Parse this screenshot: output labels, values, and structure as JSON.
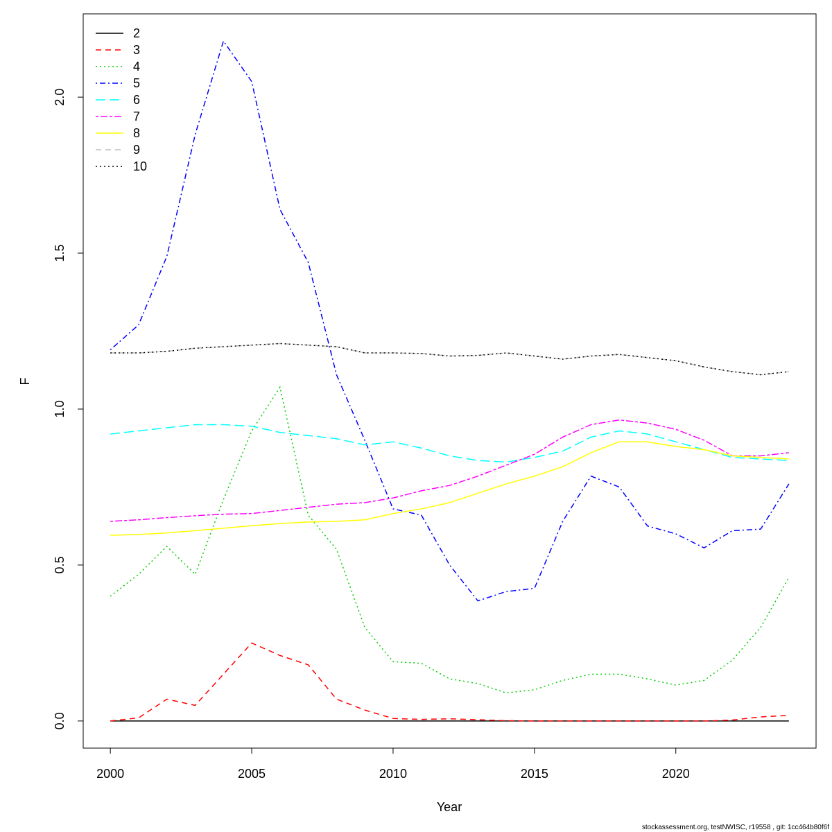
{
  "chart_data": {
    "type": "line",
    "xlabel": "Year",
    "ylabel": "F",
    "footer": "stockassessment.org, testNWISC, r19558 , git: 1cc464b80f6f",
    "x": [
      2000,
      2001,
      2002,
      2003,
      2004,
      2005,
      2006,
      2007,
      2008,
      2009,
      2010,
      2011,
      2012,
      2013,
      2014,
      2015,
      2016,
      2017,
      2018,
      2019,
      2020,
      2021,
      2022,
      2023,
      2024
    ],
    "xlim": [
      1999.04,
      2024.96
    ],
    "xticks": [
      2000,
      2005,
      2010,
      2015,
      2020
    ],
    "ylim": [
      -0.087,
      2.267
    ],
    "yticks": [
      {
        "value": 0,
        "label": "0.0"
      },
      {
        "value": 0.5,
        "label": "0.5"
      },
      {
        "value": 1,
        "label": "1.0"
      },
      {
        "value": 1.5,
        "label": "1.5"
      },
      {
        "value": 2,
        "label": "2.0"
      }
    ],
    "legend": "top-left",
    "series": [
      {
        "name": "2",
        "color": "#000000",
        "dash": "solid",
        "values": [
          0,
          0,
          0,
          0,
          0,
          0,
          0,
          0,
          0,
          0,
          0,
          0,
          0,
          0,
          0,
          0,
          0,
          0,
          0,
          0,
          0,
          0,
          0,
          0,
          0
        ]
      },
      {
        "name": "3",
        "color": "#ff0000",
        "dash": "dashed",
        "values": [
          0,
          0.01,
          0.07,
          0.05,
          0.15,
          0.25,
          0.21,
          0.18,
          0.07,
          0.035,
          0.008,
          0.005,
          0.007,
          0.004,
          0.001,
          0,
          0,
          0,
          0,
          0,
          0,
          0,
          0.003,
          0.013,
          0.018
        ]
      },
      {
        "name": "4",
        "color": "#00cd00",
        "dash": "dotted",
        "values": [
          0.4,
          0.47,
          0.56,
          0.47,
          0.71,
          0.93,
          1.07,
          0.66,
          0.55,
          0.3,
          0.19,
          0.185,
          0.135,
          0.12,
          0.09,
          0.1,
          0.13,
          0.15,
          0.15,
          0.135,
          0.115,
          0.13,
          0.195,
          0.3,
          0.46
        ]
      },
      {
        "name": "5",
        "color": "#0000ff",
        "dash": "dotdash",
        "values": [
          1.19,
          1.27,
          1.49,
          1.88,
          2.18,
          2.05,
          1.64,
          1.47,
          1.11,
          0.9,
          0.68,
          0.66,
          0.5,
          0.385,
          0.415,
          0.425,
          0.64,
          0.785,
          0.75,
          0.625,
          0.6,
          0.555,
          0.61,
          0.615,
          0.76
        ]
      },
      {
        "name": "6",
        "color": "#00ffff",
        "dash": "longdash",
        "values": [
          0.92,
          0.93,
          0.94,
          0.95,
          0.95,
          0.945,
          0.925,
          0.915,
          0.905,
          0.885,
          0.895,
          0.875,
          0.85,
          0.835,
          0.83,
          0.845,
          0.865,
          0.91,
          0.93,
          0.92,
          0.895,
          0.87,
          0.845,
          0.84,
          0.835
        ]
      },
      {
        "name": "7",
        "color": "#ff00ff",
        "dash": "twodash",
        "values": [
          0.64,
          0.645,
          0.652,
          0.658,
          0.663,
          0.665,
          0.675,
          0.685,
          0.695,
          0.7,
          0.715,
          0.738,
          0.755,
          0.785,
          0.82,
          0.855,
          0.91,
          0.95,
          0.965,
          0.955,
          0.935,
          0.9,
          0.85,
          0.85,
          0.86
        ]
      },
      {
        "name": "8",
        "color": "#ffff00",
        "dash": "solid",
        "values": [
          0.595,
          0.598,
          0.603,
          0.61,
          0.618,
          0.626,
          0.633,
          0.638,
          0.64,
          0.645,
          0.665,
          0.68,
          0.7,
          0.73,
          0.76,
          0.785,
          0.815,
          0.86,
          0.895,
          0.895,
          0.88,
          0.87,
          0.85,
          0.845,
          0.84
        ]
      },
      {
        "name": "9",
        "color": "#bebebe",
        "dash": "dashed",
        "values": [
          1.18,
          1.18,
          1.185,
          1.195,
          1.2,
          1.205,
          1.21,
          1.205,
          1.2,
          1.18,
          1.18,
          1.178,
          1.17,
          1.172,
          1.18,
          1.17,
          1.16,
          1.17,
          1.175,
          1.165,
          1.155,
          1.135,
          1.12,
          1.11,
          1.12
        ]
      },
      {
        "name": "10",
        "color": "#000000",
        "dash": "dotted",
        "values": [
          1.18,
          1.18,
          1.185,
          1.195,
          1.2,
          1.205,
          1.21,
          1.205,
          1.2,
          1.18,
          1.18,
          1.178,
          1.17,
          1.172,
          1.18,
          1.17,
          1.16,
          1.17,
          1.175,
          1.165,
          1.155,
          1.135,
          1.12,
          1.11,
          1.12
        ]
      }
    ]
  }
}
